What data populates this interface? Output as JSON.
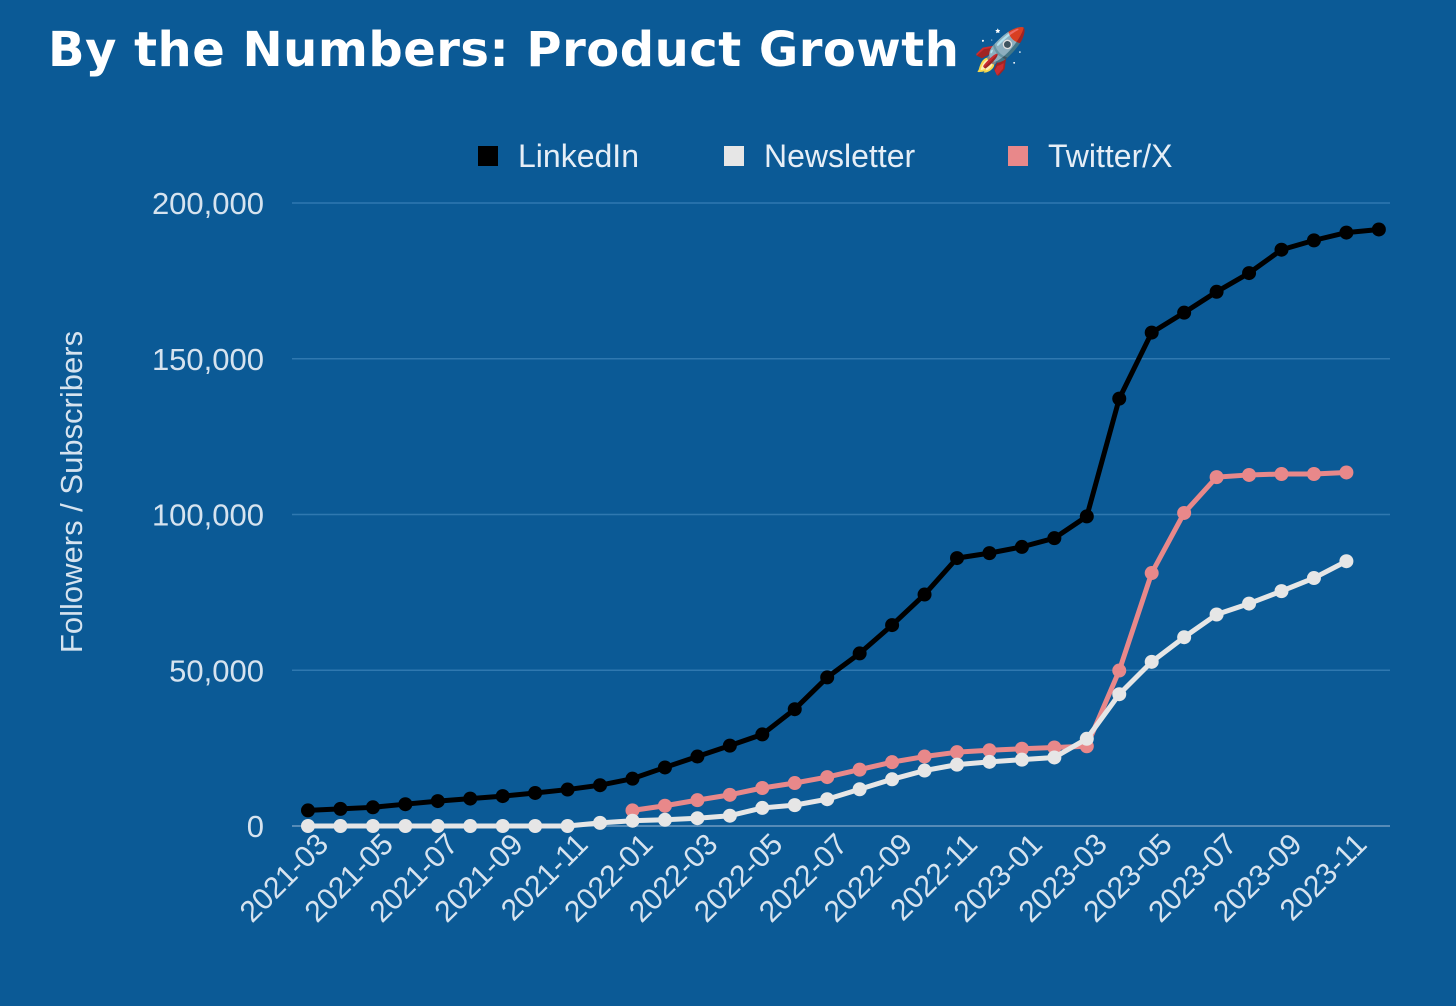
{
  "title": "By the Numbers: Product Growth",
  "title_emoji": "🚀",
  "chart_data": {
    "type": "line",
    "title": "By the Numbers: Product Growth",
    "xlabel": "",
    "ylabel": "Followers / Subscribers",
    "ylim": [
      0,
      200000
    ],
    "yticks": [
      "200,000",
      "150,000",
      "100,000",
      "50,000",
      "0"
    ],
    "ytick_values": [
      200000,
      150000,
      100000,
      50000,
      0
    ],
    "grid": true,
    "legend_position": "top-center",
    "x": [
      "2021-03",
      "2021-04",
      "2021-05",
      "2021-06",
      "2021-07",
      "2021-08",
      "2021-09",
      "2021-10",
      "2021-11",
      "2021-12",
      "2022-01",
      "2022-02",
      "2022-03",
      "2022-04",
      "2022-05",
      "2022-06",
      "2022-07",
      "2022-08",
      "2022-09",
      "2022-10",
      "2022-11",
      "2022-12",
      "2023-01",
      "2023-02",
      "2023-03",
      "2023-04",
      "2023-05",
      "2023-06",
      "2023-07",
      "2023-08",
      "2023-09",
      "2023-10",
      "2023-11",
      "2023-12"
    ],
    "xtick_labels": [
      "2021-03",
      "2021-05",
      "2021-07",
      "2021-09",
      "2021-11",
      "2022-01",
      "2022-03",
      "2022-05",
      "2022-07",
      "2022-09",
      "2022-11",
      "2023-01",
      "2023-03",
      "2023-05",
      "2023-07",
      "2023-09",
      "2023-11"
    ],
    "series": [
      {
        "name": "LinkedIn",
        "color": "#000000",
        "values": [
          5000,
          5500,
          6000,
          7000,
          8000,
          8800,
          9600,
          10600,
          11700,
          13100,
          15200,
          18800,
          22300,
          25800,
          29400,
          37500,
          47700,
          55400,
          64500,
          74300,
          86000,
          87600,
          89600,
          92400,
          99400,
          137200,
          158400,
          164800,
          171500,
          177500,
          185000,
          188000,
          190500,
          191500
        ]
      },
      {
        "name": "Newsletter",
        "color": "#e6e6e6",
        "values": [
          0,
          0,
          0,
          0,
          0,
          0,
          0,
          0,
          0,
          1000,
          1700,
          2000,
          2500,
          3300,
          5800,
          6700,
          8600,
          11800,
          15000,
          17800,
          19700,
          20600,
          21300,
          22000,
          28000,
          42300,
          52700,
          60600,
          67900,
          71400,
          75400,
          79600,
          85000,
          null
        ]
      },
      {
        "name": "Twitter/X",
        "color": "#e8888a",
        "values": [
          null,
          null,
          null,
          null,
          null,
          null,
          null,
          null,
          null,
          null,
          5000,
          6500,
          8300,
          10000,
          12200,
          13800,
          15700,
          18100,
          20500,
          22300,
          23700,
          24300,
          24800,
          25200,
          25600,
          49900,
          81200,
          100500,
          112000,
          112700,
          113000,
          113000,
          113500,
          null
        ]
      }
    ]
  }
}
